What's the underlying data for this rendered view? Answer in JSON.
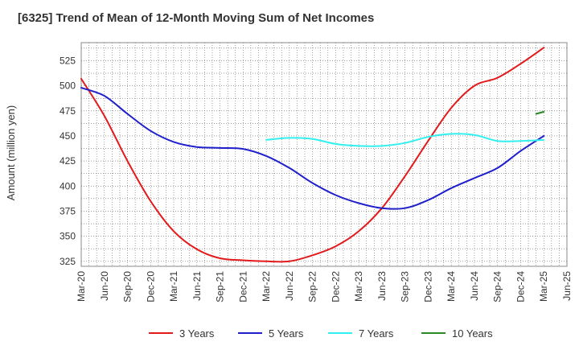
{
  "title": "[6325]  Trend of Mean of 12-Month Moving Sum of Net Incomes",
  "colors": {
    "3 Years": "#e31a1c",
    "5 Years": "#1f1fcc",
    "7 Years": "#33f0f0",
    "10 Years": "#2a8a2a",
    "grid": "#666666",
    "axis": "#888888"
  },
  "chart_data": {
    "type": "line",
    "title": "[6325]  Trend of Mean of 12-Month Moving Sum of Net Incomes",
    "xlabel": "",
    "ylabel": "Amount (million yen)",
    "x_ticks": [
      "Mar-20",
      "Jun-20",
      "Sep-20",
      "Dec-20",
      "Mar-21",
      "Jun-21",
      "Sep-21",
      "Dec-21",
      "Mar-22",
      "Jun-22",
      "Sep-22",
      "Dec-22",
      "Mar-23",
      "Jun-23",
      "Sep-23",
      "Dec-23",
      "Mar-24",
      "Jun-24",
      "Sep-24",
      "Dec-24",
      "Mar-25",
      "Jun-25"
    ],
    "y_ticks": [
      325,
      350,
      375,
      400,
      425,
      450,
      475,
      500,
      525
    ],
    "ylim": [
      320,
      543
    ],
    "grid": true,
    "legend_position": "bottom",
    "series": [
      {
        "name": "3 Years",
        "x": [
          "Mar-20",
          "Jun-20",
          "Sep-20",
          "Dec-20",
          "Mar-21",
          "Jun-21",
          "Sep-21",
          "Dec-21",
          "Mar-22",
          "Jun-22",
          "Sep-22",
          "Dec-22",
          "Mar-23",
          "Jun-23",
          "Sep-23",
          "Dec-23",
          "Mar-24",
          "Jun-24",
          "Sep-24",
          "Dec-24",
          "Mar-25"
        ],
        "values": [
          507,
          470,
          425,
          385,
          355,
          337,
          328,
          326,
          325,
          325,
          331,
          340,
          355,
          378,
          410,
          445,
          478,
          500,
          508,
          522,
          538
        ]
      },
      {
        "name": "5 Years",
        "x": [
          "Mar-20",
          "Jun-20",
          "Sep-20",
          "Dec-20",
          "Mar-21",
          "Jun-21",
          "Sep-21",
          "Dec-21",
          "Mar-22",
          "Jun-22",
          "Sep-22",
          "Dec-22",
          "Mar-23",
          "Jun-23",
          "Sep-23",
          "Dec-23",
          "Mar-24",
          "Jun-24",
          "Sep-24",
          "Dec-24",
          "Mar-25"
        ],
        "values": [
          498,
          490,
          472,
          455,
          444,
          439,
          438,
          437,
          430,
          418,
          403,
          391,
          383,
          378,
          378,
          386,
          398,
          408,
          418,
          435,
          450
        ]
      },
      {
        "name": "7 Years",
        "x": [
          "Mar-22",
          "Jun-22",
          "Sep-22",
          "Dec-22",
          "Mar-23",
          "Jun-23",
          "Sep-23",
          "Dec-23",
          "Mar-24",
          "Jun-24",
          "Sep-24",
          "Dec-24",
          "Mar-25"
        ],
        "values": [
          446,
          448,
          447,
          442,
          440,
          440,
          443,
          449,
          452,
          451,
          445,
          445,
          446
        ]
      },
      {
        "name": "10 Years",
        "x": [
          "Feb-25",
          "Mar-25"
        ],
        "values": [
          472,
          474
        ]
      }
    ]
  }
}
